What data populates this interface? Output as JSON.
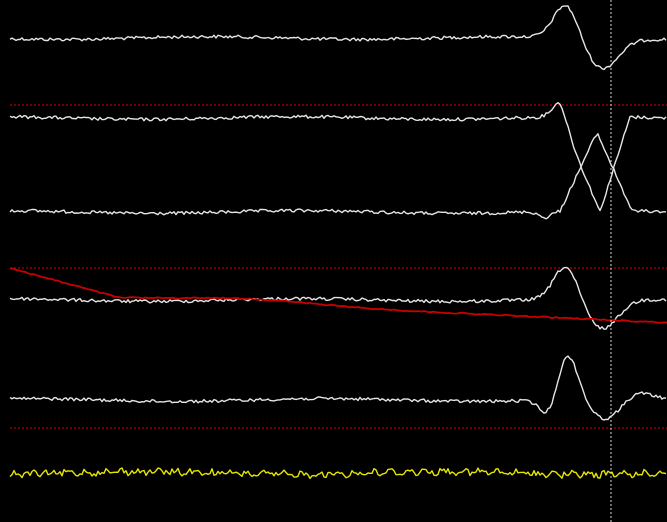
{
  "app": {
    "view": "multichannel-signal-trace-viewer"
  },
  "colors": {
    "background": "#000000",
    "trace": "#e6e6e6",
    "overlay_trace": "#c80000",
    "reference_trace": "#e6e600",
    "separator": "#b40000",
    "cursor": "#d8d8d8"
  },
  "traces": [
    {
      "id": "ch1",
      "color_key": "trace",
      "kind": "spike_up_down",
      "spike_at": 0.88
    },
    {
      "id": "ch2",
      "color_key": "trace",
      "kind": "cross_down",
      "spike_at": 0.88
    },
    {
      "id": "ch3",
      "color_key": "trace",
      "kind": "cross_up",
      "spike_at": 0.88
    },
    {
      "id": "ch4",
      "color_key": "trace",
      "kind": "spike_up_down",
      "spike_at": 0.88
    },
    {
      "id": "ch5",
      "color_key": "trace",
      "kind": "spike_down_up",
      "spike_at": 0.88
    },
    {
      "id": "ref",
      "color_key": "reference_trace",
      "kind": "noise"
    }
  ],
  "overlay_trace": {
    "id": "drift",
    "color_key": "overlay_trace",
    "kind": "slow_decay"
  },
  "cursor": {
    "visible": true,
    "style": "dotted-vertical"
  }
}
